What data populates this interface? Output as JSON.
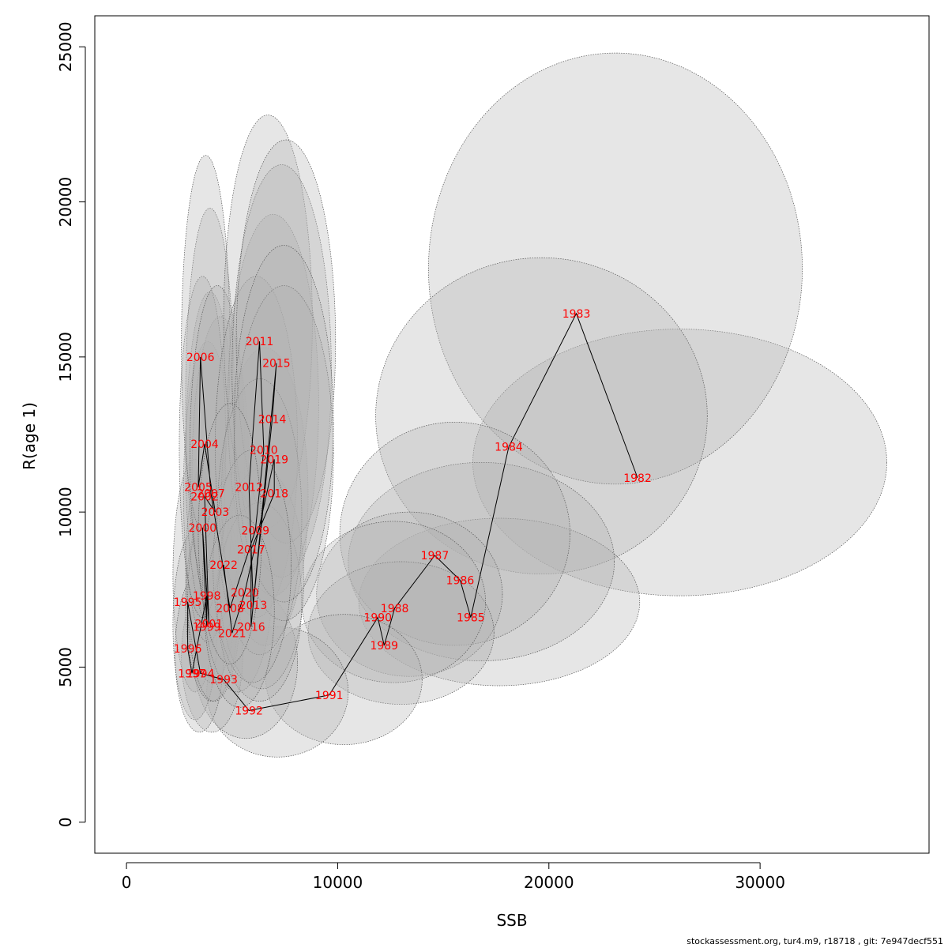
{
  "chart_data": {
    "type": "scatter",
    "title": "",
    "xlabel": "SSB",
    "ylabel": "R(age 1)",
    "xlim": [
      -1500,
      38000
    ],
    "ylim": [
      -1000,
      26000
    ],
    "x_ticks": [
      0,
      10000,
      20000,
      30000
    ],
    "y_ticks": [
      0,
      5000,
      10000,
      15000,
      20000,
      25000
    ],
    "grid": false,
    "legend": "none",
    "connect_points_in_year_order": true,
    "confidence_ellipses": true,
    "colors": {
      "line": "#000000",
      "labels": "#ff0000",
      "ellipse_fill": "#b0b0b0",
      "ellipse_edge": "#555555"
    },
    "points": [
      {
        "year": "1982",
        "ssb": 24200,
        "r": 11100,
        "ssb_lo": 16400,
        "ssb_hi": 36000,
        "r_lo": 7300,
        "r_hi": 15900
      },
      {
        "year": "1983",
        "ssb": 21300,
        "r": 16400,
        "ssb_lo": 14300,
        "ssb_hi": 32000,
        "r_lo": 10900,
        "r_hi": 24800
      },
      {
        "year": "1984",
        "ssb": 18100,
        "r": 12100,
        "ssb_lo": 11800,
        "ssb_hi": 27500,
        "r_lo": 8000,
        "r_hi": 18200
      },
      {
        "year": "1985",
        "ssb": 16300,
        "r": 6600,
        "ssb_lo": 11000,
        "ssb_hi": 24300,
        "r_lo": 4400,
        "r_hi": 9800
      },
      {
        "year": "1986",
        "ssb": 15800,
        "r": 7800,
        "ssb_lo": 10500,
        "ssb_hi": 23100,
        "r_lo": 5200,
        "r_hi": 11600
      },
      {
        "year": "1987",
        "ssb": 14600,
        "r": 8600,
        "ssb_lo": 10100,
        "ssb_hi": 21000,
        "r_lo": 5700,
        "r_hi": 12900
      },
      {
        "year": "1988",
        "ssb": 12700,
        "r": 6900,
        "ssb_lo": 9000,
        "ssb_hi": 17800,
        "r_lo": 4700,
        "r_hi": 10000
      },
      {
        "year": "1989",
        "ssb": 12200,
        "r": 5700,
        "ssb_lo": 8600,
        "ssb_hi": 17400,
        "r_lo": 3800,
        "r_hi": 8400
      },
      {
        "year": "1990",
        "ssb": 11900,
        "r": 6600,
        "ssb_lo": 8300,
        "ssb_hi": 17000,
        "r_lo": 4500,
        "r_hi": 9700
      },
      {
        "year": "1991",
        "ssb": 9600,
        "r": 4100,
        "ssb_lo": 6600,
        "ssb_hi": 14000,
        "r_lo": 2500,
        "r_hi": 6700
      },
      {
        "year": "1992",
        "ssb": 5800,
        "r": 3600,
        "ssb_lo": 3800,
        "ssb_hi": 10500,
        "r_lo": 2100,
        "r_hi": 6300
      },
      {
        "year": "1993",
        "ssb": 4600,
        "r": 4600,
        "ssb_lo": 3200,
        "ssb_hi": 8100,
        "r_lo": 2700,
        "r_hi": 7600
      },
      {
        "year": "1994",
        "ssb": 3500,
        "r": 4800,
        "ssb_lo": 2600,
        "ssb_hi": 5500,
        "r_lo": 2900,
        "r_hi": 7800
      },
      {
        "year": "1995",
        "ssb": 2900,
        "r": 7100,
        "ssb_lo": 2200,
        "ssb_hi": 4300,
        "r_lo": 4200,
        "r_hi": 11700
      },
      {
        "year": "1996",
        "ssb": 2900,
        "r": 5600,
        "ssb_lo": 2200,
        "ssb_hi": 4300,
        "r_lo": 3300,
        "r_hi": 9400
      },
      {
        "year": "1997",
        "ssb": 3100,
        "r": 4800,
        "ssb_lo": 2300,
        "ssb_hi": 4600,
        "r_lo": 2900,
        "r_hi": 8000
      },
      {
        "year": "1998",
        "ssb": 3800,
        "r": 7300,
        "ssb_lo": 2800,
        "ssb_hi": 5300,
        "r_lo": 4500,
        "r_hi": 12000
      },
      {
        "year": "1999",
        "ssb": 3800,
        "r": 6300,
        "ssb_lo": 2800,
        "ssb_hi": 5300,
        "r_lo": 3900,
        "r_hi": 10200
      },
      {
        "year": "2000",
        "ssb": 3600,
        "r": 9500,
        "ssb_lo": 2700,
        "ssb_hi": 5000,
        "r_lo": 5800,
        "r_hi": 15500
      },
      {
        "year": "2001",
        "ssb": 3900,
        "r": 6400,
        "ssb_lo": 2900,
        "ssb_hi": 5400,
        "r_lo": 3900,
        "r_hi": 10400
      },
      {
        "year": "2002",
        "ssb": 3700,
        "r": 10500,
        "ssb_lo": 2800,
        "ssb_hi": 5100,
        "r_lo": 6400,
        "r_hi": 17100
      },
      {
        "year": "2003",
        "ssb": 4200,
        "r": 10000,
        "ssb_lo": 3100,
        "ssb_hi": 5800,
        "r_lo": 6100,
        "r_hi": 16300
      },
      {
        "year": "2004",
        "ssb": 3700,
        "r": 12200,
        "ssb_lo": 2800,
        "ssb_hi": 5100,
        "r_lo": 7400,
        "r_hi": 19800
      },
      {
        "year": "2005",
        "ssb": 3400,
        "r": 10800,
        "ssb_lo": 2500,
        "ssb_hi": 4700,
        "r_lo": 6600,
        "r_hi": 17600
      },
      {
        "year": "2006",
        "ssb": 3500,
        "r": 15000,
        "ssb_lo": 2600,
        "ssb_hi": 4900,
        "r_lo": 9200,
        "r_hi": 21500
      },
      {
        "year": "2007",
        "ssb": 4000,
        "r": 10600,
        "ssb_lo": 3000,
        "ssb_hi": 5600,
        "r_lo": 6500,
        "r_hi": 17300
      },
      {
        "year": "2008",
        "ssb": 4900,
        "r": 6900,
        "ssb_lo": 3600,
        "ssb_hi": 6900,
        "r_lo": 4200,
        "r_hi": 11300
      },
      {
        "year": "2009",
        "ssb": 6100,
        "r": 9400,
        "ssb_lo": 4500,
        "ssb_hi": 8600,
        "r_lo": 5700,
        "r_hi": 15300
      },
      {
        "year": "2010",
        "ssb": 6500,
        "r": 12000,
        "ssb_lo": 4800,
        "ssb_hi": 9100,
        "r_lo": 7300,
        "r_hi": 19600
      },
      {
        "year": "2011",
        "ssb": 6300,
        "r": 15500,
        "ssb_lo": 4600,
        "ssb_hi": 8800,
        "r_lo": 9500,
        "r_hi": 22800
      },
      {
        "year": "2012",
        "ssb": 5800,
        "r": 10800,
        "ssb_lo": 4200,
        "ssb_hi": 8100,
        "r_lo": 6600,
        "r_hi": 17600
      },
      {
        "year": "2013",
        "ssb": 6000,
        "r": 7000,
        "ssb_lo": 4400,
        "ssb_hi": 8400,
        "r_lo": 4300,
        "r_hi": 11400
      },
      {
        "year": "2014",
        "ssb": 6900,
        "r": 13000,
        "ssb_lo": 5000,
        "ssb_hi": 9700,
        "r_lo": 7900,
        "r_hi": 21200
      },
      {
        "year": "2015",
        "ssb": 7100,
        "r": 14800,
        "ssb_lo": 5200,
        "ssb_hi": 9900,
        "r_lo": 9000,
        "r_hi": 22000
      },
      {
        "year": "2016",
        "ssb": 5900,
        "r": 6300,
        "ssb_lo": 4300,
        "ssb_hi": 8300,
        "r_lo": 3900,
        "r_hi": 10300
      },
      {
        "year": "2017",
        "ssb": 5900,
        "r": 8800,
        "ssb_lo": 4300,
        "ssb_hi": 8300,
        "r_lo": 5400,
        "r_hi": 14300
      },
      {
        "year": "2018",
        "ssb": 7000,
        "r": 10600,
        "ssb_lo": 5100,
        "ssb_hi": 9800,
        "r_lo": 6500,
        "r_hi": 17300
      },
      {
        "year": "2019",
        "ssb": 7000,
        "r": 11700,
        "ssb_lo": 5100,
        "ssb_hi": 9800,
        "r_lo": 7100,
        "r_hi": 18600
      },
      {
        "year": "2020",
        "ssb": 5600,
        "r": 7400,
        "ssb_lo": 4100,
        "ssb_hi": 7800,
        "r_lo": 4500,
        "r_hi": 12000
      },
      {
        "year": "2021",
        "ssb": 5000,
        "r": 6100,
        "ssb_lo": 3700,
        "ssb_hi": 7000,
        "r_lo": 3700,
        "r_hi": 9900
      },
      {
        "year": "2022",
        "ssb": 4600,
        "r": 8300,
        "ssb_lo": 3400,
        "ssb_hi": 6400,
        "r_lo": 5100,
        "r_hi": 13500
      }
    ]
  },
  "footer": {
    "text": "stockassessment.org, tur4.m9, r18718 , git: 7e947decf551"
  }
}
